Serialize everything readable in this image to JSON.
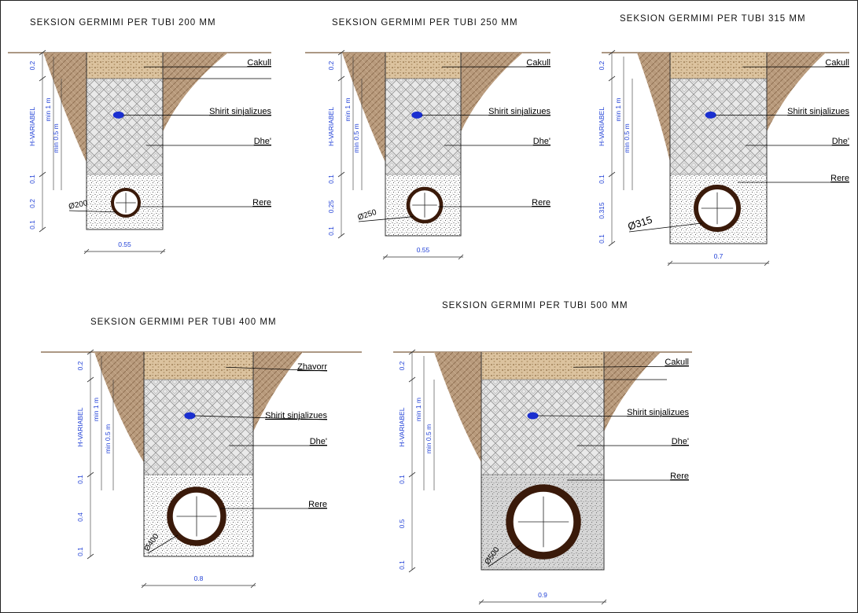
{
  "sections": [
    {
      "title": "SEKSION GERMIMI PER TUBI 200 MM",
      "labels": [
        "Cakull",
        "Shirit sinjalizues",
        "Dhe'",
        "Rere"
      ],
      "diameter": "Ø200",
      "left_dims": [
        "0.2",
        "H-VARIABEL",
        "min 1 m",
        "min 0.5 m",
        "0.1",
        "0.2",
        "0.1"
      ],
      "width": "0.55"
    },
    {
      "title": "SEKSION GERMIMI PER TUBI 250 MM",
      "labels": [
        "Cakull",
        "Shirit sinjalizues",
        "Dhe'",
        "Rere"
      ],
      "diameter": "Ø250",
      "left_dims": [
        "0.2",
        "H-VARIABEL",
        "min 1 m",
        "min 0.5 m",
        "0.1",
        "0.25",
        "0.1"
      ],
      "width": "0.55"
    },
    {
      "title": "SEKSION GERMIMI PER TUBI 315 MM",
      "labels": [
        "Cakull",
        "Shirit sinjalizues",
        "Dhe'",
        "Rere"
      ],
      "diameter": "Ø315",
      "left_dims": [
        "0.2",
        "H-VARIABEL",
        "min 1 m",
        "min 0.5 m",
        "0.1",
        "0.315",
        "0.1"
      ],
      "width": "0.7"
    },
    {
      "title": "SEKSION GERMIMI PER TUBI 400 MM",
      "labels": [
        "Zhavorr",
        "Shirit sinjalizues",
        "Dhe'",
        "Rere"
      ],
      "diameter": "Ø400",
      "left_dims": [
        "0.2",
        "H-VARIABEL",
        "min 1 m",
        "min 0.5 m",
        "0.1",
        "0.4",
        "0.1"
      ],
      "width": "0.8"
    },
    {
      "title": "SEKSION GERMIMI PER TUBI 500 MM",
      "labels": [
        "Cakull",
        "Shirit sinjalizues",
        "Dhe'",
        "Rere"
      ],
      "diameter": "Ø500",
      "left_dims": [
        "0.2",
        "H-VARIABEL",
        "min 1 m",
        "min 0.5 m",
        "0.1",
        "0.5",
        "0.1"
      ],
      "width": "0.9"
    }
  ],
  "colors": {
    "soil": "#b89a7c",
    "gravel": "#d9bf9a",
    "fill_earth": "#d8d8d8",
    "sand": "#f2f2f2",
    "pipe": "#3a1a0a",
    "dimension": "#1f3fd6",
    "tape": "#1a2fd0"
  }
}
